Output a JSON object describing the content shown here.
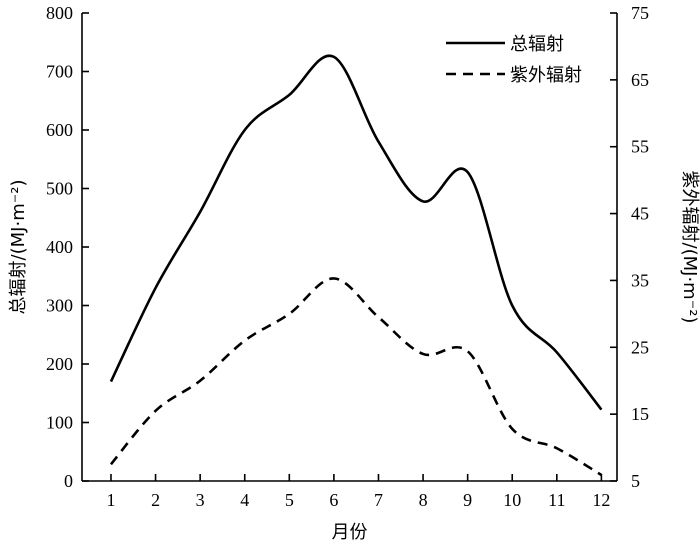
{
  "chart_data": {
    "type": "line",
    "x": [
      1,
      2,
      3,
      4,
      5,
      6,
      7,
      8,
      9,
      10,
      11,
      12
    ],
    "xlabel": "月份",
    "xlim": [
      0.35,
      12.35
    ],
    "x_ticks": [
      "1",
      "2",
      "3",
      "4",
      "5",
      "6",
      "7",
      "8",
      "9",
      "10",
      "11",
      "12"
    ],
    "ylabel_left": "总辐射/(MJ·m⁻²)",
    "ylim_left": [
      0,
      800
    ],
    "y_ticks_left": [
      "0",
      "100",
      "200",
      "300",
      "400",
      "500",
      "600",
      "700",
      "800"
    ],
    "ylabel_right": "紫外辐射/(MJ·m⁻²)",
    "ylim_right": [
      5,
      75
    ],
    "y_ticks_right": [
      "5",
      "15",
      "25",
      "35",
      "45",
      "55",
      "65",
      "75"
    ],
    "legend_position": "top-right",
    "grid": false,
    "series": [
      {
        "name": "总辐射",
        "axis": "left",
        "style": "solid",
        "values": [
          170,
          330,
          460,
          600,
          660,
          725,
          580,
          478,
          528,
          300,
          220,
          122
        ]
      },
      {
        "name": "紫外辐射",
        "axis": "right",
        "style": "dashed",
        "values": [
          7.5,
          15.5,
          20,
          26,
          30,
          35.3,
          29.5,
          24,
          24.4,
          12.8,
          9.9,
          5.9
        ]
      }
    ]
  }
}
